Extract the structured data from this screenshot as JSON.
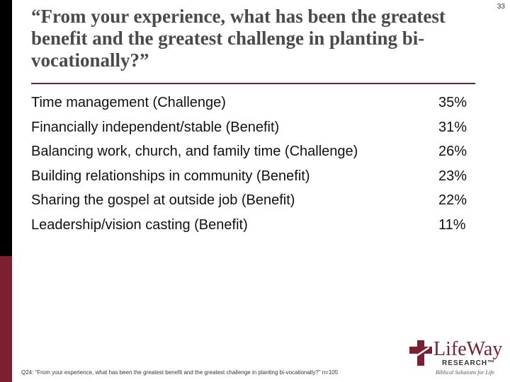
{
  "page_number": "33",
  "title": "“From your experience, what has been the greatest benefit and the greatest challenge in planting bi-vocationally?”",
  "items": [
    {
      "label": "Time management (Challenge)",
      "value": "35%"
    },
    {
      "label": "Financially independent/stable (Benefit)",
      "value": "31%"
    },
    {
      "label": "Balancing work, church, and family time (Challenge)",
      "value": "26%"
    },
    {
      "label": "Building relationships in community (Benefit)",
      "value": "23%"
    },
    {
      "label": "Sharing the gospel at outside job (Benefit)",
      "value": "22%"
    },
    {
      "label": "Leadership/vision casting (Benefit)",
      "value": "11%"
    }
  ],
  "footnote": "Q24: “From your experience, what has been the greatest benefit and the greatest challenge in planting bi-vocationally?” n=105",
  "logo": {
    "brand": "LifeWay",
    "research": "RESEARCH™",
    "tagline": "Biblical Solutions for Life"
  },
  "colors": {
    "accent": "#7b1f31",
    "left_bar_top": "#000000",
    "title_text": "#4a4a4a"
  }
}
